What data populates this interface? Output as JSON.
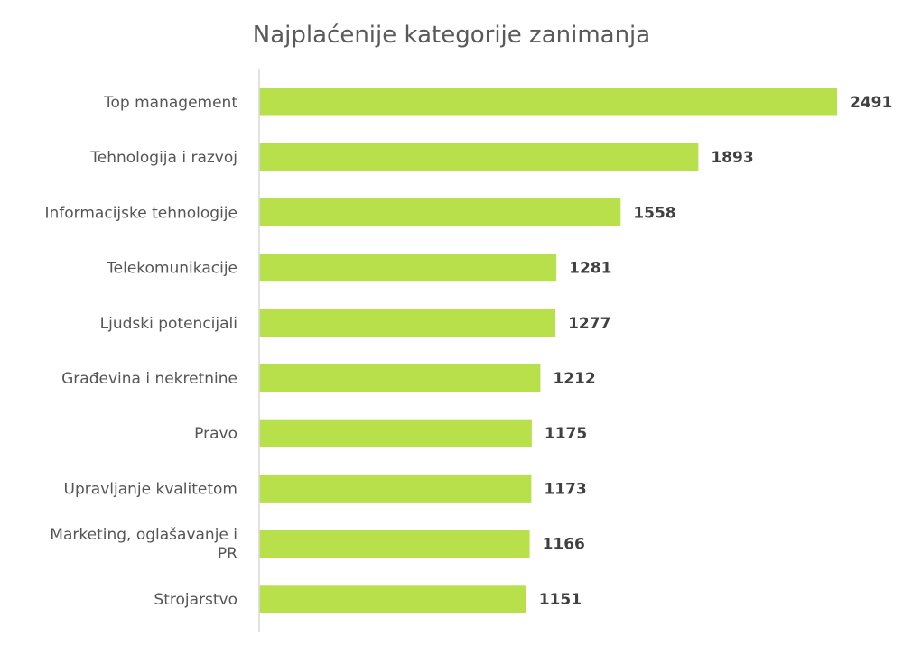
{
  "colors": {
    "bar": "#b8e04a",
    "axis": "#d9d9d9",
    "text": "#555555",
    "value_text": "#404040"
  },
  "chart_data": {
    "type": "bar",
    "orientation": "horizontal",
    "title": "Najplaćenije kategorije zanimanja",
    "categories": [
      "Top management",
      "Tehnologija i razvoj",
      "Informacijske tehnologije",
      "Telekomunikacije",
      "Ljudski potencijali",
      "Građevina i nekretnine",
      "Pravo",
      "Upravljanje kvalitetom",
      "Marketing, oglašavanje i PR",
      "Strojarstvo"
    ],
    "category_lines": [
      [
        "Top management"
      ],
      [
        "Tehnologija i razvoj"
      ],
      [
        "Informacijske tehnologije"
      ],
      [
        "Telekomunikacije"
      ],
      [
        "Ljudski potencijali"
      ],
      [
        "Građevina i nekretnine"
      ],
      [
        "Pravo"
      ],
      [
        "Upravljanje kvalitetom"
      ],
      [
        "Marketing, oglašavanje i",
        "PR"
      ],
      [
        "Strojarstvo"
      ]
    ],
    "values": [
      2491,
      1893,
      1558,
      1281,
      1277,
      1212,
      1175,
      1173,
      1166,
      1151
    ],
    "xlim": [
      0,
      2491
    ],
    "data_labels": true,
    "grid": false,
    "legend": "none"
  }
}
